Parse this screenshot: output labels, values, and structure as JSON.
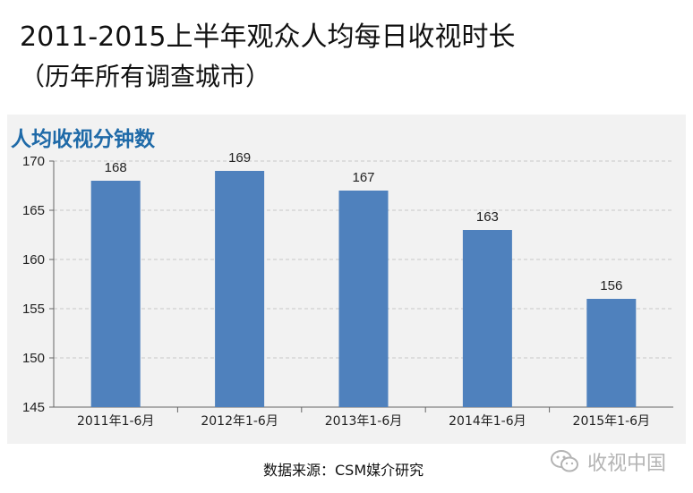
{
  "title": "2011-2015上半年观众人均每日收视时长",
  "subtitle": "（历年所有调查城市）",
  "source": "数据来源：CSM媒介研究",
  "watermark": "收视中国",
  "colors": {
    "bar": "#4f81bd",
    "heading": "#1f6aa8",
    "panel": "#f2f2f2",
    "grid": "#c8c8c8"
  },
  "chart_data": {
    "type": "bar",
    "title": "人均收视分钟数",
    "categories": [
      "2011年1-6月",
      "2012年1-6月",
      "2013年1-6月",
      "2014年1-6月",
      "2015年1-6月"
    ],
    "values": [
      168,
      169,
      167,
      163,
      156
    ],
    "data_labels": [
      "168",
      "169",
      "167",
      "163",
      "156"
    ],
    "ylim": [
      145,
      170
    ],
    "yticks": [
      145,
      150,
      155,
      160,
      165,
      170
    ],
    "ytick_labels": [
      "145",
      "150",
      "155",
      "160",
      "165",
      "170"
    ],
    "grid": true,
    "legend": "none",
    "xlabel": "",
    "ylabel": ""
  }
}
